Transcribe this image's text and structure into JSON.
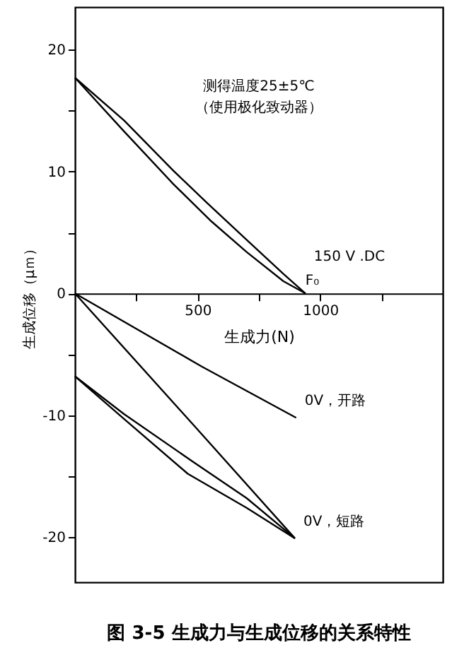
{
  "chart_data": {
    "type": "line",
    "title": "图 3-5 生成力与生成位移的关系特性",
    "xlabel": "生成力(N)",
    "ylabel": "生成位移（μｍ）",
    "xlim": [
      0,
      1500
    ],
    "ylim": [
      -23.7,
      23.5
    ],
    "xticks": [
      {
        "value": 250,
        "label": null
      },
      500,
      {
        "value": 750,
        "label": null
      },
      1000,
      {
        "value": 1250,
        "label": null
      }
    ],
    "yticks": [
      -20,
      {
        "value": -15,
        "label": null
      },
      -10,
      {
        "value": -5,
        "label": null
      },
      0,
      {
        "value": 5,
        "label": null
      },
      10,
      {
        "value": 15,
        "label": null
      },
      20
    ],
    "grid": false,
    "marker": "none",
    "line_style": "solid",
    "series": [
      {
        "name": "150 V .DC",
        "color": "#000000",
        "x": [
          0,
          200,
          400,
          540,
          700,
          850,
          940
        ],
        "values": [
          17.7,
          14.2,
          10.1,
          7.4,
          4.4,
          1.6,
          0
        ]
      },
      {
        "color": "#000000",
        "x": [
          0,
          200,
          400,
          557,
          700,
          850,
          940
        ],
        "values": [
          17.7,
          13.3,
          9.0,
          5.9,
          3.4,
          1.0,
          0
        ]
      },
      {
        "name": "0V，开路",
        "color": "#000000",
        "x": [
          0,
          517,
          902
        ],
        "values": [
          0,
          -6.0,
          -10.2
        ]
      },
      {
        "name": "0V，短路",
        "color": "#000000",
        "x": [
          0,
          488,
          897
        ],
        "values": [
          0,
          -10.9,
          -20.1
        ]
      },
      {
        "color": "#000000",
        "x": [
          0,
          200,
          480,
          700,
          897
        ],
        "values": [
          -6.8,
          -9.9,
          -13.8,
          -16.8,
          -20.1
        ]
      },
      {
        "color": "#000000",
        "x": [
          0,
          200,
          460,
          700,
          897
        ],
        "values": [
          -6.8,
          -10.3,
          -14.8,
          -17.6,
          -20.1
        ]
      }
    ],
    "annotations": [
      "测得温度25±5℃",
      "（使用极化致动器）",
      {
        "text": "F₀",
        "x": 940,
        "y": 0
      }
    ]
  }
}
